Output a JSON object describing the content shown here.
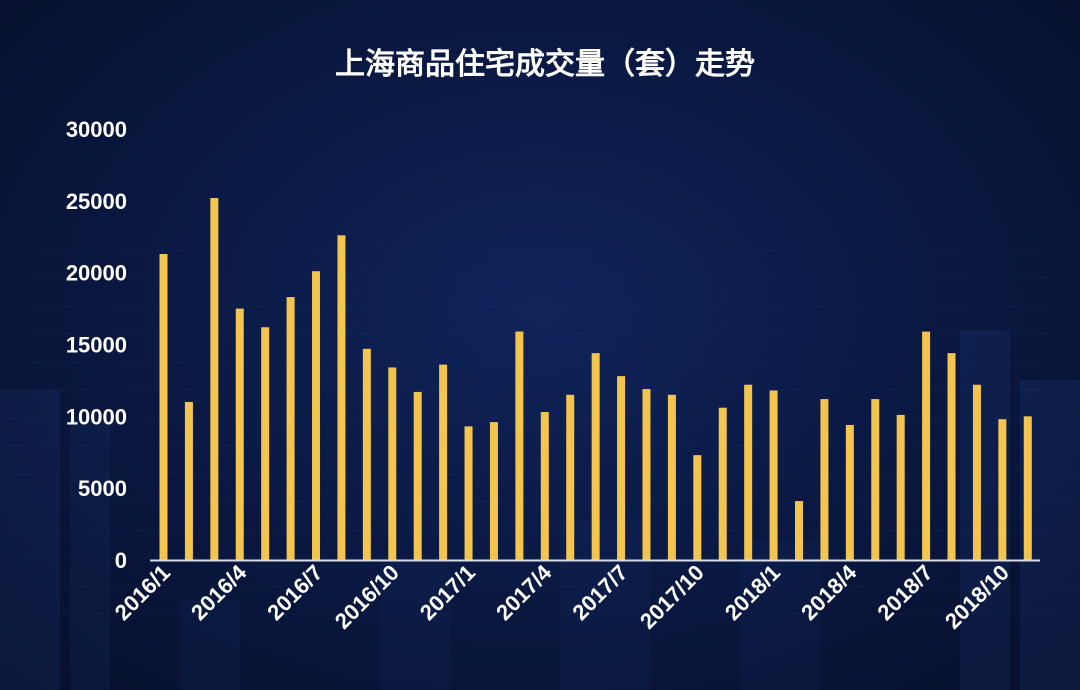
{
  "chart_data": {
    "type": "bar",
    "title": "上海商品住宅成交量（套）走势",
    "xlabel": "",
    "ylabel": "",
    "ylim": [
      0,
      30000
    ],
    "yticks": [
      0,
      5000,
      10000,
      15000,
      20000,
      25000,
      30000
    ],
    "xtick_labels": [
      "2016/1",
      "2016/4",
      "2016/7",
      "2016/10",
      "2017/1",
      "2017/4",
      "2017/7",
      "2017/10",
      "2018/1",
      "2018/4",
      "2018/7",
      "2018/10"
    ],
    "categories": [
      "2016/1",
      "2016/2",
      "2016/3",
      "2016/4",
      "2016/5",
      "2016/6",
      "2016/7",
      "2016/8",
      "2016/9",
      "2016/10",
      "2016/11",
      "2016/12",
      "2017/1",
      "2017/2",
      "2017/3",
      "2017/4",
      "2017/5",
      "2017/6",
      "2017/7",
      "2017/8",
      "2017/9",
      "2017/10",
      "2017/11",
      "2017/12",
      "2018/1",
      "2018/2",
      "2018/3",
      "2018/4",
      "2018/5",
      "2018/6",
      "2018/7",
      "2018/8",
      "2018/9",
      "2018/10",
      "2018/11"
    ],
    "values": [
      21300,
      11000,
      25200,
      17500,
      16200,
      18300,
      20100,
      22600,
      14700,
      13400,
      11700,
      13600,
      9300,
      9600,
      15900,
      10300,
      11500,
      14400,
      12800,
      11900,
      11500,
      7300,
      10600,
      12200,
      11800,
      4100,
      11200,
      9400,
      11200,
      10100,
      15900,
      14400,
      12200,
      9800,
      10000
    ],
    "bar_color": "#f4c54e",
    "grid": false,
    "legend": "none"
  }
}
